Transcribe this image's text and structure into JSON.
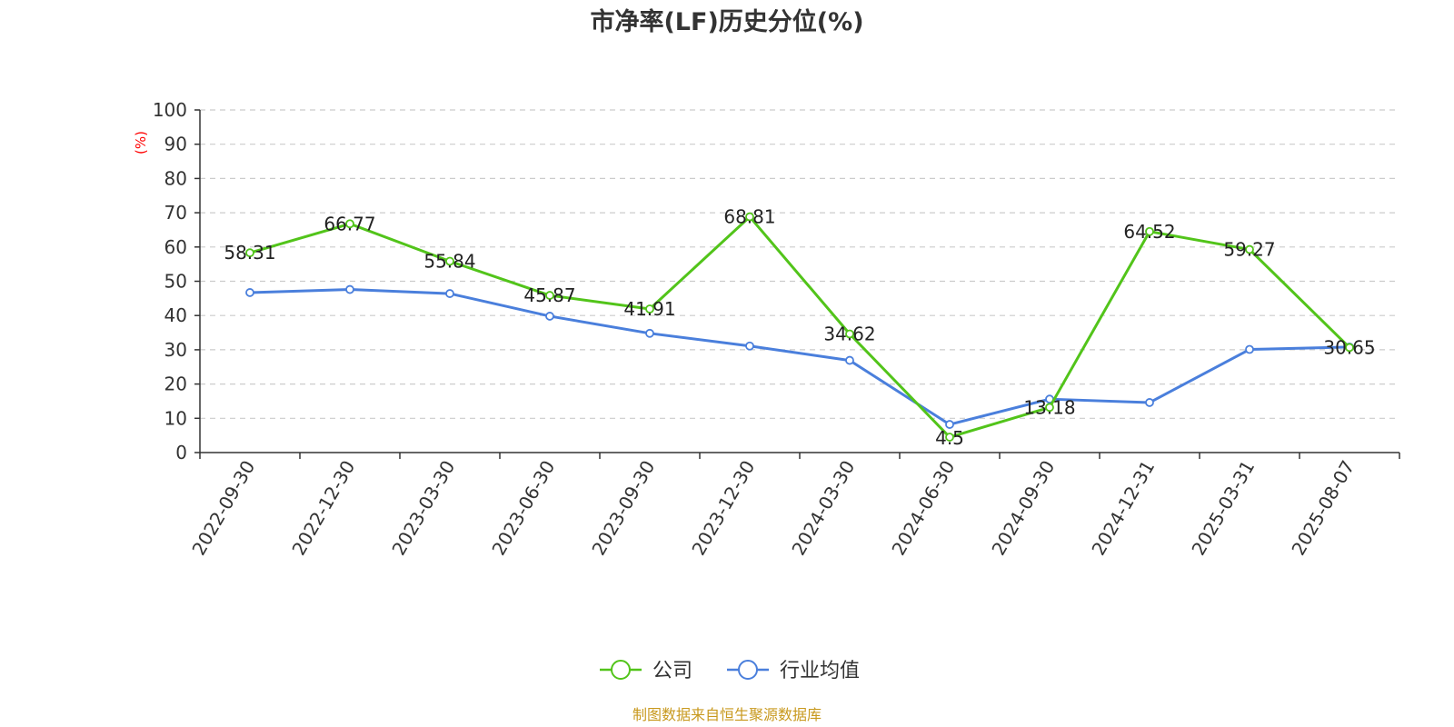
{
  "chart_data": {
    "type": "line",
    "title": "市净率(LF)历史分位(%)",
    "ylabel": "(%)",
    "ylim": [
      0,
      100
    ],
    "yticks": [
      0,
      10,
      20,
      30,
      40,
      50,
      60,
      70,
      80,
      90,
      100
    ],
    "categories": [
      "2022-09-30",
      "2022-12-30",
      "2023-03-30",
      "2023-06-30",
      "2023-09-30",
      "2023-12-30",
      "2024-03-30",
      "2024-06-30",
      "2024-09-30",
      "2024-12-31",
      "2025-03-31",
      "2025-08-07"
    ],
    "grid": true,
    "legend_position": "bottom",
    "series": [
      {
        "name": "公司",
        "color": "#52c41a",
        "values": [
          58.31,
          66.77,
          55.84,
          45.87,
          41.91,
          68.81,
          34.62,
          4.5,
          13.18,
          64.52,
          59.27,
          30.65
        ],
        "labels": [
          "58.31",
          "66.77",
          "55.84",
          "45.87",
          "41.91",
          "68.81",
          "34.62",
          "4.5",
          "13.18",
          "64.52",
          "59.27",
          "30.65"
        ]
      },
      {
        "name": "行业均值",
        "color": "#4a7fdc",
        "values": [
          46.7,
          47.6,
          46.4,
          39.8,
          34.8,
          31.1,
          26.9,
          8.2,
          15.6,
          14.6,
          30.1,
          30.8
        ]
      }
    ],
    "source": "制图数据来自恒生聚源数据库"
  }
}
